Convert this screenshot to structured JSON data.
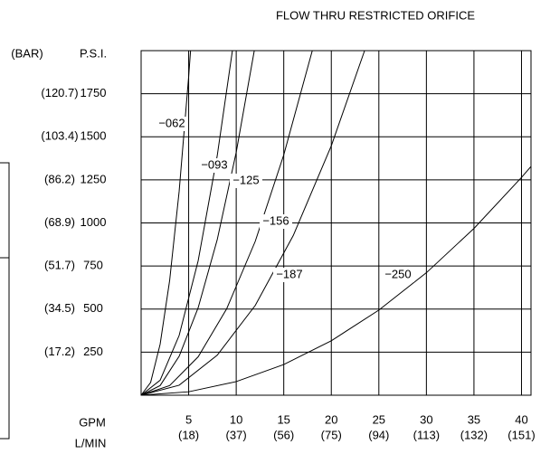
{
  "chart_data": {
    "type": "line",
    "title": "FLOW THRU RESTRICTED ORIFICE",
    "y_unit_bar": "(BAR)",
    "y_unit_psi": "P.S.I.",
    "x_unit_gpm": "GPM",
    "x_unit_lmin": "L/MIN",
    "xlim": [
      0,
      41
    ],
    "ylim": [
      0,
      2000
    ],
    "xticks": [
      5,
      10,
      15,
      20,
      25,
      30,
      35,
      40
    ],
    "xticks_lmin": [
      "(18)",
      "(37)",
      "(56)",
      "(75)",
      "(94)",
      "(113)",
      "(132)",
      "(151)"
    ],
    "yticks": [
      250,
      500,
      750,
      1000,
      1250,
      1500,
      1750
    ],
    "yticks_bar": [
      "(17.2)",
      "(34.5)",
      "(51.7)",
      "(68.9)",
      "(86.2)",
      "(103.4)",
      "(120.7)"
    ],
    "grid": true,
    "color": "#000000",
    "series": [
      {
        "name": "−062",
        "x": [
          0,
          1,
          2,
          3,
          4,
          5,
          5.2
        ],
        "values": [
          0,
          74,
          296,
          666,
          1184,
          1850,
          2000
        ]
      },
      {
        "name": "−093",
        "x": [
          0,
          2,
          4,
          6,
          8,
          9.6
        ],
        "values": [
          0,
          87,
          347,
          781,
          1389,
          2000
        ]
      },
      {
        "name": "−125",
        "x": [
          0,
          2,
          4,
          6,
          8,
          10,
          11.9
        ],
        "values": [
          0,
          56,
          226,
          508,
          902,
          1410,
          2000
        ]
      },
      {
        "name": "−156",
        "x": [
          0,
          3,
          6,
          9,
          12,
          15,
          18
        ],
        "values": [
          0,
          56,
          223,
          502,
          893,
          1395,
          2000
        ]
      },
      {
        "name": "−187",
        "x": [
          0,
          4,
          8,
          12,
          16,
          20,
          23.5
        ],
        "values": [
          0,
          58,
          232,
          521,
          927,
          1448,
          2000
        ]
      },
      {
        "name": "−250",
        "x": [
          0,
          5,
          10,
          15,
          20,
          25,
          30,
          35,
          40,
          41
        ],
        "values": [
          0,
          20,
          79,
          178,
          316,
          494,
          711,
          968,
          1264,
          1328
        ]
      }
    ]
  }
}
